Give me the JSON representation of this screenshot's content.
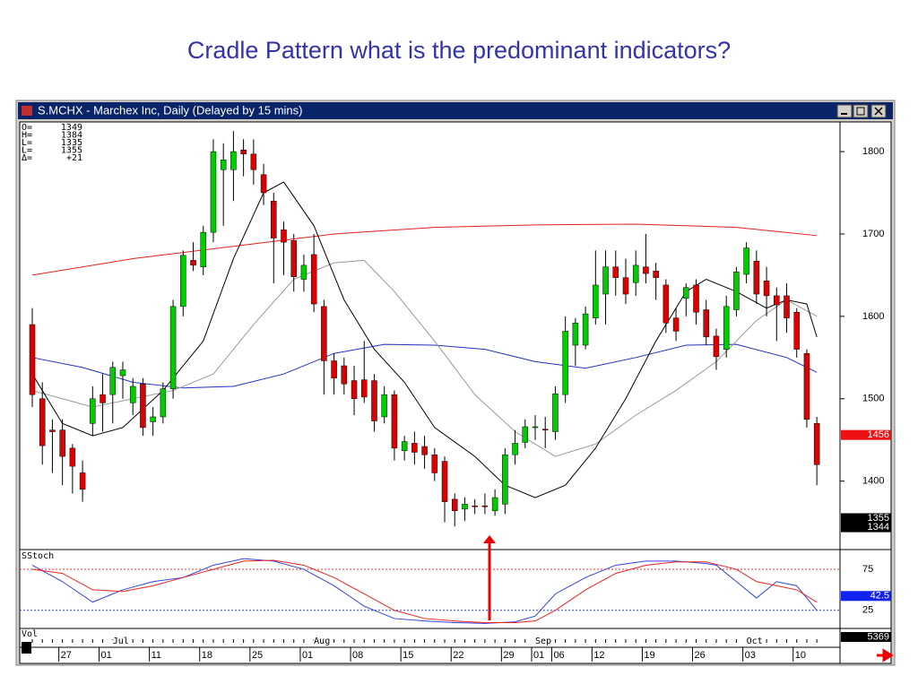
{
  "chart_data": {
    "type": "candlestick",
    "title": "Cradle Pattern what is the predominant indicators?",
    "window_title": "S.MCHX - Marchex Inc, Daily (Delayed by 15 mins)",
    "info": [
      {
        "label": "O=",
        "value": "1349"
      },
      {
        "label": "H=",
        "value": "1384"
      },
      {
        "label": "L=",
        "value": "1335"
      },
      {
        "label": "L=",
        "value": "1355"
      },
      {
        "label": "Δ=",
        "value": "+21"
      }
    ],
    "up_color": "#00cc00",
    "down_color": "#dd0000",
    "candles": [
      [
        1590,
        1610,
        1490,
        1505
      ],
      [
        1500,
        1520,
        1420,
        1443
      ],
      [
        1462,
        1475,
        1410,
        1460
      ],
      [
        1462,
        1475,
        1395,
        1430
      ],
      [
        1440,
        1445,
        1385,
        1418
      ],
      [
        1410,
        1425,
        1375,
        1390
      ],
      [
        1470,
        1515,
        1455,
        1500
      ],
      [
        1505,
        1530,
        1460,
        1495
      ],
      [
        1505,
        1545,
        1470,
        1538
      ],
      [
        1528,
        1545,
        1500,
        1535
      ],
      [
        1495,
        1525,
        1480,
        1515
      ],
      [
        1518,
        1525,
        1455,
        1465
      ],
      [
        1472,
        1490,
        1455,
        1478
      ],
      [
        1478,
        1520,
        1470,
        1512
      ],
      [
        1512,
        1620,
        1500,
        1612
      ],
      [
        1612,
        1680,
        1600,
        1674
      ],
      [
        1668,
        1690,
        1655,
        1662
      ],
      [
        1660,
        1710,
        1650,
        1702
      ],
      [
        1702,
        1815,
        1690,
        1800
      ],
      [
        1778,
        1810,
        1710,
        1790
      ],
      [
        1778,
        1825,
        1740,
        1800
      ],
      [
        1802,
        1815,
        1770,
        1797
      ],
      [
        1797,
        1815,
        1760,
        1778
      ],
      [
        1772,
        1785,
        1735,
        1750
      ],
      [
        1740,
        1750,
        1640,
        1695
      ],
      [
        1705,
        1715,
        1650,
        1690
      ],
      [
        1692,
        1700,
        1630,
        1648
      ],
      [
        1645,
        1675,
        1630,
        1662
      ],
      [
        1675,
        1700,
        1605,
        1615
      ],
      [
        1612,
        1620,
        1505,
        1546
      ],
      [
        1546,
        1555,
        1505,
        1525
      ],
      [
        1540,
        1550,
        1505,
        1518
      ],
      [
        1522,
        1540,
        1480,
        1500
      ],
      [
        1523,
        1570,
        1495,
        1502
      ],
      [
        1522,
        1530,
        1460,
        1473
      ],
      [
        1478,
        1515,
        1470,
        1505
      ],
      [
        1505,
        1510,
        1425,
        1440
      ],
      [
        1437,
        1455,
        1425,
        1448
      ],
      [
        1446,
        1460,
        1420,
        1435
      ],
      [
        1442,
        1455,
        1415,
        1432
      ],
      [
        1432,
        1440,
        1400,
        1410
      ],
      [
        1424,
        1430,
        1350,
        1375
      ],
      [
        1378,
        1385,
        1345,
        1364
      ],
      [
        1366,
        1380,
        1352,
        1372
      ],
      [
        1370,
        1378,
        1360,
        1369
      ],
      [
        1370,
        1385,
        1360,
        1369
      ],
      [
        1364,
        1390,
        1358,
        1380
      ],
      [
        1372,
        1440,
        1360,
        1432
      ],
      [
        1432,
        1462,
        1420,
        1446
      ],
      [
        1447,
        1475,
        1440,
        1466
      ],
      [
        1465,
        1480,
        1450,
        1466
      ],
      [
        1463,
        1478,
        1440,
        1462
      ],
      [
        1460,
        1515,
        1450,
        1506
      ],
      [
        1505,
        1600,
        1495,
        1582
      ],
      [
        1565,
        1598,
        1540,
        1592
      ],
      [
        1565,
        1612,
        1560,
        1603
      ],
      [
        1598,
        1680,
        1590,
        1638
      ],
      [
        1627,
        1680,
        1590,
        1660
      ],
      [
        1660,
        1680,
        1625,
        1647
      ],
      [
        1647,
        1670,
        1615,
        1627
      ],
      [
        1641,
        1680,
        1625,
        1662
      ],
      [
        1660,
        1700,
        1640,
        1652
      ],
      [
        1655,
        1665,
        1620,
        1647
      ],
      [
        1638,
        1645,
        1580,
        1592
      ],
      [
        1598,
        1610,
        1570,
        1582
      ],
      [
        1622,
        1640,
        1600,
        1635
      ],
      [
        1638,
        1645,
        1590,
        1605
      ],
      [
        1608,
        1620,
        1565,
        1575
      ],
      [
        1576,
        1585,
        1535,
        1551
      ],
      [
        1560,
        1625,
        1550,
        1612
      ],
      [
        1608,
        1660,
        1600,
        1654
      ],
      [
        1651,
        1690,
        1640,
        1683
      ],
      [
        1667,
        1680,
        1615,
        1627
      ],
      [
        1643,
        1660,
        1600,
        1625
      ],
      [
        1625,
        1635,
        1570,
        1614
      ],
      [
        1625,
        1640,
        1580,
        1598
      ],
      [
        1605,
        1610,
        1550,
        1560
      ],
      [
        1555,
        1560,
        1465,
        1475
      ],
      [
        1470,
        1478,
        1395,
        1420
      ]
    ],
    "ylim": [
      1318,
      1836
    ],
    "yticks": [
      1400,
      1500,
      1600,
      1700,
      1800
    ],
    "series": [
      {
        "color": "#e02020",
        "x": [
          0,
          10,
          20,
          30,
          40,
          50,
          60,
          70,
          78
        ],
        "values": [
          1650,
          1670,
          1685,
          1700,
          1708,
          1711,
          1712,
          1708,
          1698
        ]
      },
      {
        "color": "#2030c0",
        "x": [
          0,
          5,
          10,
          15,
          20,
          25,
          30,
          35,
          40,
          45,
          50,
          55,
          60,
          65,
          70,
          75,
          78
        ],
        "values": [
          1550,
          1538,
          1520,
          1513,
          1515,
          1530,
          1555,
          1566,
          1565,
          1560,
          1545,
          1537,
          1550,
          1565,
          1566,
          1550,
          1532
        ]
      },
      {
        "color": "#999999",
        "x": [
          0,
          3,
          6,
          10,
          14,
          18,
          22,
          26,
          30,
          33,
          36,
          40,
          44,
          48,
          52,
          56,
          60,
          64,
          68,
          72,
          75,
          78
        ],
        "values": [
          1510,
          1500,
          1490,
          1500,
          1510,
          1530,
          1590,
          1645,
          1665,
          1668,
          1630,
          1570,
          1505,
          1460,
          1430,
          1445,
          1480,
          1510,
          1545,
          1595,
          1620,
          1600
        ]
      },
      {
        "color": "#000000",
        "x": [
          0,
          3,
          6,
          9,
          13,
          17,
          20,
          23,
          25,
          28,
          31,
          34,
          37,
          40,
          44,
          47,
          50,
          53,
          56,
          59,
          62,
          65,
          67,
          70,
          73,
          75,
          77,
          78
        ],
        "values": [
          1530,
          1470,
          1455,
          1465,
          1510,
          1570,
          1670,
          1750,
          1763,
          1710,
          1620,
          1560,
          1520,
          1465,
          1430,
          1395,
          1380,
          1395,
          1440,
          1500,
          1570,
          1630,
          1645,
          1630,
          1610,
          1620,
          1615,
          1575
        ]
      }
    ],
    "price_tags": [
      {
        "value": 1456,
        "color": "#ee1111",
        "text_color": "#ffffff"
      },
      {
        "value": 1355,
        "color": "#000000",
        "text_color": "#ffffff"
      },
      {
        "value": 1344,
        "color": "#000000",
        "text_color": "#ffffff"
      }
    ],
    "stoch": {
      "label": "SStoch",
      "ylim": [
        4,
        98
      ],
      "yticks": [
        25,
        75
      ],
      "series": [
        {
          "color": "#3344dd",
          "x": [
            0,
            3,
            6,
            9,
            12,
            15,
            18,
            21,
            24,
            27,
            30,
            33,
            36,
            39,
            42,
            45,
            48,
            50,
            52,
            55,
            58,
            61,
            64,
            67,
            68,
            70,
            72,
            74,
            76,
            78
          ],
          "values": [
            80,
            60,
            35,
            50,
            60,
            65,
            80,
            88,
            85,
            75,
            55,
            30,
            15,
            12,
            10,
            9,
            11,
            18,
            45,
            65,
            80,
            85,
            85,
            82,
            80,
            60,
            40,
            60,
            55,
            25
          ]
        },
        {
          "color": "#ee2222",
          "x": [
            0,
            3,
            6,
            9,
            12,
            15,
            18,
            21,
            24,
            27,
            30,
            33,
            36,
            39,
            42,
            45,
            48,
            50,
            52,
            55,
            58,
            61,
            64,
            67,
            70,
            72,
            74,
            76,
            78
          ],
          "values": [
            75,
            70,
            50,
            48,
            55,
            65,
            75,
            85,
            86,
            80,
            65,
            45,
            25,
            15,
            12,
            10,
            10,
            12,
            25,
            50,
            70,
            80,
            84,
            84,
            75,
            60,
            55,
            50,
            35
          ]
        }
      ],
      "tag": {
        "value": 42.5,
        "color": "#1122ee",
        "text_color": "#ffffff"
      }
    },
    "volume": {
      "label": "Vol",
      "tag": "5369"
    },
    "months": [
      {
        "index": 8,
        "label": "Jul"
      },
      {
        "index": 28,
        "label": "Aug"
      },
      {
        "index": 50,
        "label": "Sep"
      },
      {
        "index": 71,
        "label": "Oct"
      }
    ],
    "dates": [
      {
        "index": 3,
        "label": "27"
      },
      {
        "index": 7,
        "label": "01"
      },
      {
        "index": 12,
        "label": "11"
      },
      {
        "index": 17,
        "label": "18"
      },
      {
        "index": 22,
        "label": "25"
      },
      {
        "index": 27,
        "label": "01"
      },
      {
        "index": 32,
        "label": "08"
      },
      {
        "index": 37,
        "label": "15"
      },
      {
        "index": 42,
        "label": "22"
      },
      {
        "index": 47,
        "label": "29"
      },
      {
        "index": 50,
        "label": "01"
      },
      {
        "index": 52,
        "label": "06"
      },
      {
        "index": 56,
        "label": "12"
      },
      {
        "index": 61,
        "label": "19"
      },
      {
        "index": 66,
        "label": "26"
      },
      {
        "index": 71,
        "label": "03"
      },
      {
        "index": 76,
        "label": "10"
      }
    ]
  }
}
